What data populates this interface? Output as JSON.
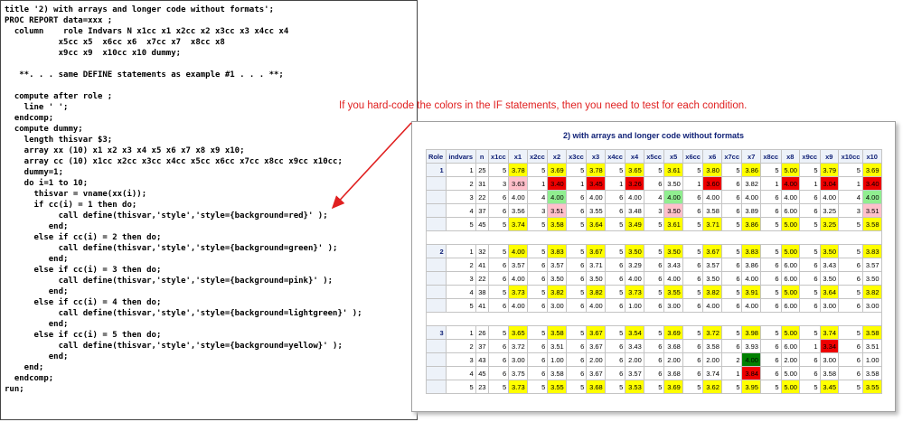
{
  "code": {
    "lines": [
      "title '2) with arrays and longer code without formats';",
      "PROC REPORT data=xxx ;",
      "  column    role Indvars N x1cc x1 x2cc x2 x3cc x3 x4cc x4",
      "           x5cc x5  x6cc x6  x7cc x7  x8cc x8",
      "           x9cc x9  x10cc x10 dummy;",
      "   **. . . same DEFINE statements as example #1 . . . **;",
      "  compute after role ;",
      "    line ' ';",
      "  endcomp;",
      "  compute dummy;",
      "    length thisvar $3;",
      "    array xx (10) x1 x2 x3 x4 x5 x6 x7 x8 x9 x10;",
      "    array cc (10) x1cc x2cc x3cc x4cc x5cc x6cc x7cc x8cc x9cc x10cc;",
      "    dummy=1;",
      "    do i=1 to 10;",
      "      thisvar = vname(xx(i));",
      "      if cc(i) = 1 then do;",
      "           call define(thisvar,'style','style={background=red}' );",
      "         end;",
      "      else if cc(i) = 2 then do;",
      "           call define(thisvar,'style','style={background=green}' );",
      "         end;",
      "      else if cc(i) = 3 then do;",
      "           call define(thisvar,'style','style={background=pink}' );",
      "         end;",
      "      else if cc(i) = 4 then do;",
      "           call define(thisvar,'style','style={background=lightgreen}' );",
      "         end;",
      "      else if cc(i) = 5 then do;",
      "           call define(thisvar,'style','style={background=yellow}' );",
      "         end;",
      "    end;",
      "  endcomp;",
      "run;"
    ]
  },
  "annotation": "If you hard-code the colors in the IF statements, then you need to test for each condition.",
  "table": {
    "title": "2) with arrays and longer code without formats",
    "columns": [
      "Role",
      "indvars",
      "n",
      "x1cc",
      "x1",
      "x2cc",
      "x2",
      "x3cc",
      "x3",
      "x4cc",
      "x4",
      "x5cc",
      "x5",
      "x6cc",
      "x6",
      "x7cc",
      "x7",
      "x8cc",
      "x8",
      "x9cc",
      "x9",
      "x10cc",
      "x10"
    ],
    "cc_colors": {
      "1": "#ee0000",
      "2": "#008000",
      "3": "#ffc0cb",
      "4": "#90ee90",
      "5": "#ffff00"
    },
    "groups": [
      {
        "role": "1",
        "rows": [
          [
            "1",
            "25",
            "5",
            "3.78",
            "5",
            "3.69",
            "5",
            "3.78",
            "5",
            "3.65",
            "5",
            "3.61",
            "5",
            "3.80",
            "5",
            "3.86",
            "5",
            "5.00",
            "5",
            "3.79",
            "5",
            "3.69"
          ],
          [
            "2",
            "31",
            "3",
            "3.63",
            "1",
            "3.40",
            "1",
            "3.45",
            "1",
            "3.26",
            "6",
            "3.50",
            "1",
            "3.60",
            "6",
            "3.82",
            "1",
            "4.00",
            "1",
            "3.04",
            "1",
            "3.40"
          ],
          [
            "3",
            "22",
            "6",
            "4.00",
            "4",
            "4.00",
            "6",
            "4.00",
            "6",
            "4.00",
            "4",
            "4.00",
            "6",
            "4.00",
            "6",
            "4.00",
            "6",
            "4.00",
            "6",
            "4.00",
            "4",
            "4.00"
          ],
          [
            "4",
            "37",
            "6",
            "3.56",
            "3",
            "3.51",
            "6",
            "3.55",
            "6",
            "3.48",
            "3",
            "3.50",
            "6",
            "3.58",
            "6",
            "3.89",
            "6",
            "6.00",
            "6",
            "3.25",
            "3",
            "3.51"
          ],
          [
            "5",
            "45",
            "5",
            "3.74",
            "5",
            "3.58",
            "5",
            "3.64",
            "5",
            "3.49",
            "5",
            "3.61",
            "5",
            "3.71",
            "5",
            "3.86",
            "5",
            "5.00",
            "5",
            "3.25",
            "5",
            "3.58"
          ]
        ]
      },
      {
        "role": "2",
        "rows": [
          [
            "1",
            "32",
            "5",
            "4.00",
            "5",
            "3.83",
            "5",
            "3.67",
            "5",
            "3.50",
            "5",
            "3.50",
            "5",
            "3.67",
            "5",
            "3.83",
            "5",
            "5.00",
            "5",
            "3.50",
            "5",
            "3.83"
          ],
          [
            "2",
            "41",
            "6",
            "3.57",
            "6",
            "3.57",
            "6",
            "3.71",
            "6",
            "3.29",
            "6",
            "3.43",
            "6",
            "3.57",
            "6",
            "3.86",
            "6",
            "6.00",
            "6",
            "3.43",
            "6",
            "3.57"
          ],
          [
            "3",
            "22",
            "6",
            "4.00",
            "6",
            "3.50",
            "6",
            "3.50",
            "6",
            "4.00",
            "6",
            "4.00",
            "6",
            "3.50",
            "6",
            "4.00",
            "6",
            "6.00",
            "6",
            "3.50",
            "6",
            "3.50"
          ],
          [
            "4",
            "38",
            "5",
            "3.73",
            "5",
            "3.82",
            "5",
            "3.82",
            "5",
            "3.73",
            "5",
            "3.55",
            "5",
            "3.82",
            "5",
            "3.91",
            "5",
            "5.00",
            "5",
            "3.64",
            "5",
            "3.82"
          ],
          [
            "5",
            "41",
            "6",
            "4.00",
            "6",
            "3.00",
            "6",
            "4.00",
            "6",
            "1.00",
            "6",
            "3.00",
            "6",
            "4.00",
            "6",
            "4.00",
            "6",
            "6.00",
            "6",
            "3.00",
            "6",
            "3.00"
          ]
        ]
      },
      {
        "role": "3",
        "rows": [
          [
            "1",
            "26",
            "5",
            "3.65",
            "5",
            "3.58",
            "5",
            "3.67",
            "5",
            "3.54",
            "5",
            "3.69",
            "5",
            "3.72",
            "5",
            "3.98",
            "5",
            "5.00",
            "5",
            "3.74",
            "5",
            "3.58"
          ],
          [
            "2",
            "37",
            "6",
            "3.72",
            "6",
            "3.51",
            "6",
            "3.67",
            "6",
            "3.43",
            "6",
            "3.68",
            "6",
            "3.58",
            "6",
            "3.93",
            "6",
            "6.00",
            "1",
            "3.34",
            "6",
            "3.51"
          ],
          [
            "3",
            "43",
            "6",
            "3.00",
            "6",
            "1.00",
            "6",
            "2.00",
            "6",
            "2.00",
            "6",
            "2.00",
            "6",
            "2.00",
            "2",
            "4.00",
            "6",
            "2.00",
            "6",
            "3.00",
            "6",
            "1.00"
          ],
          [
            "4",
            "45",
            "6",
            "3.75",
            "6",
            "3.58",
            "6",
            "3.67",
            "6",
            "3.57",
            "6",
            "3.68",
            "6",
            "3.74",
            "1",
            "3.84",
            "6",
            "5.00",
            "6",
            "3.58",
            "6",
            "3.58"
          ],
          [
            "5",
            "23",
            "5",
            "3.73",
            "5",
            "3.55",
            "5",
            "3.68",
            "5",
            "3.53",
            "5",
            "3.69",
            "5",
            "3.62",
            "5",
            "3.95",
            "5",
            "5.00",
            "5",
            "3.45",
            "5",
            "3.55"
          ]
        ]
      }
    ]
  }
}
